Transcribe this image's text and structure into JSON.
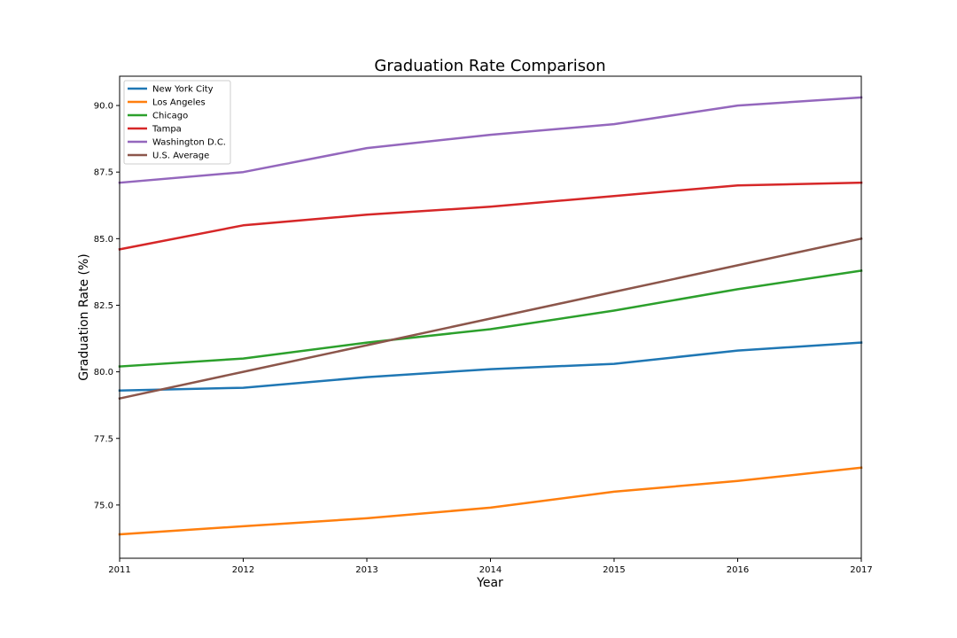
{
  "chart_data": {
    "type": "line",
    "title": "Graduation Rate Comparison",
    "xlabel": "Year",
    "ylabel": "Graduation Rate (%)",
    "x": [
      2011,
      2012,
      2013,
      2014,
      2015,
      2016,
      2017
    ],
    "xlim": [
      2011,
      2017
    ],
    "ylim": [
      73.0,
      91.1
    ],
    "yticks": [
      75.0,
      77.5,
      80.0,
      82.5,
      85.0,
      87.5,
      90.0
    ],
    "ytick_labels": [
      "75.0",
      "77.5",
      "80.0",
      "82.5",
      "85.0",
      "87.5",
      "90.0"
    ],
    "xtick_labels": [
      "2011",
      "2012",
      "2013",
      "2014",
      "2015",
      "2016",
      "2017"
    ],
    "grid": false,
    "legend_position": "top-left",
    "series": [
      {
        "name": "New York City",
        "color": "#1f77b4",
        "values": [
          79.3,
          79.4,
          79.8,
          80.1,
          80.3,
          80.8,
          81.1
        ]
      },
      {
        "name": "Los Angeles",
        "color": "#ff7f0e",
        "values": [
          73.9,
          74.2,
          74.5,
          74.9,
          75.5,
          75.9,
          76.4
        ]
      },
      {
        "name": "Chicago",
        "color": "#2ca02c",
        "values": [
          80.2,
          80.5,
          81.1,
          81.6,
          82.3,
          83.1,
          83.8
        ]
      },
      {
        "name": "Tampa",
        "color": "#d62728",
        "values": [
          84.6,
          85.5,
          85.9,
          86.2,
          86.6,
          87.0,
          87.1
        ]
      },
      {
        "name": "Washington D.C.",
        "color": "#9467bd",
        "values": [
          87.1,
          87.5,
          88.4,
          88.9,
          89.3,
          90.0,
          90.3
        ]
      },
      {
        "name": "U.S. Average",
        "color": "#8c564b",
        "values": [
          79.0,
          80.0,
          81.0,
          82.0,
          83.0,
          84.0,
          85.0
        ]
      }
    ]
  }
}
